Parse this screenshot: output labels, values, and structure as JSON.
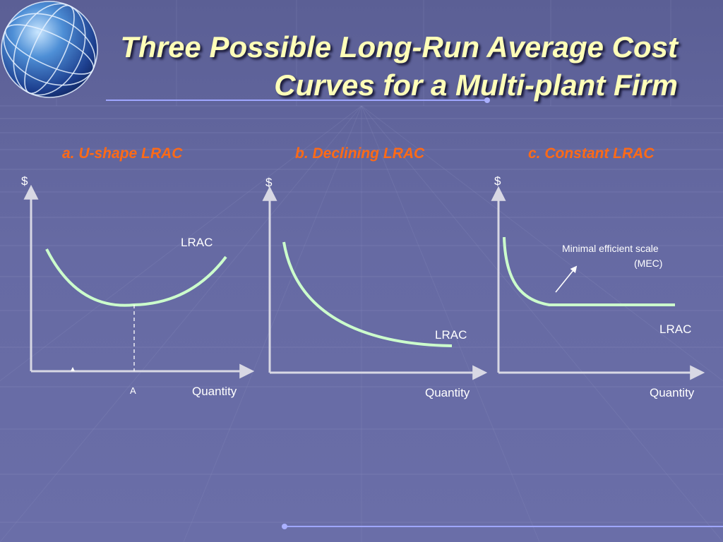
{
  "title": {
    "line1": "Three Possible Long-Run Average Cost",
    "line2": "Curves for a Multi-plant Firm"
  },
  "panels": [
    {
      "label": "a. U-shape LRAC",
      "y_axis_label": "$",
      "x_axis_label": "Quantity",
      "curve_label": "LRAC",
      "tick_label": "A"
    },
    {
      "label": "b. Declining LRAC",
      "y_axis_label": "$",
      "x_axis_label": "Quantity",
      "curve_label": "LRAC"
    },
    {
      "label": "c. Constant LRAC",
      "y_axis_label": "$",
      "x_axis_label": "Quantity",
      "curve_label": "LRAC",
      "annotation_line1": "Minimal efficient scale",
      "annotation_line2": "(MEC)"
    }
  ],
  "colors": {
    "background": "#6468a0",
    "title": "#ffffb8",
    "panel_label": "#ff6a16",
    "curve": "#ccffcc",
    "axis": "#d8d8e4",
    "accent_line": "#9fa6ff"
  },
  "icons": {
    "logo": "globe-icon"
  }
}
